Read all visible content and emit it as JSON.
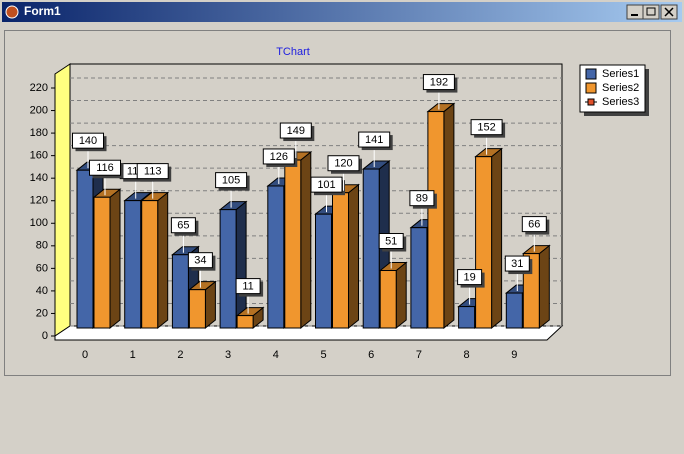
{
  "window": {
    "title": "Form1"
  },
  "chart_data": {
    "type": "bar",
    "title": "TChart",
    "categories": [
      "0",
      "1",
      "2",
      "3",
      "4",
      "5",
      "6",
      "7",
      "8",
      "9"
    ],
    "series": [
      {
        "name": "Series1",
        "color": "#4466a8",
        "values": [
          140,
          113,
          65,
          105,
          126,
          101,
          141,
          89,
          19,
          31
        ]
      },
      {
        "name": "Series2",
        "color": "#f0962e",
        "values": [
          116,
          113,
          34,
          11,
          149,
          120,
          51,
          192,
          152,
          66
        ]
      },
      {
        "name": "Series3",
        "color": "#e0502a",
        "values": [
          null,
          null,
          null,
          null,
          null,
          null,
          null,
          null,
          null,
          null
        ]
      }
    ],
    "ylim": [
      0,
      220
    ],
    "yticks": [
      0,
      20,
      40,
      60,
      80,
      100,
      120,
      140,
      160,
      180,
      200,
      220
    ],
    "grid": true,
    "legend": "top-right"
  }
}
